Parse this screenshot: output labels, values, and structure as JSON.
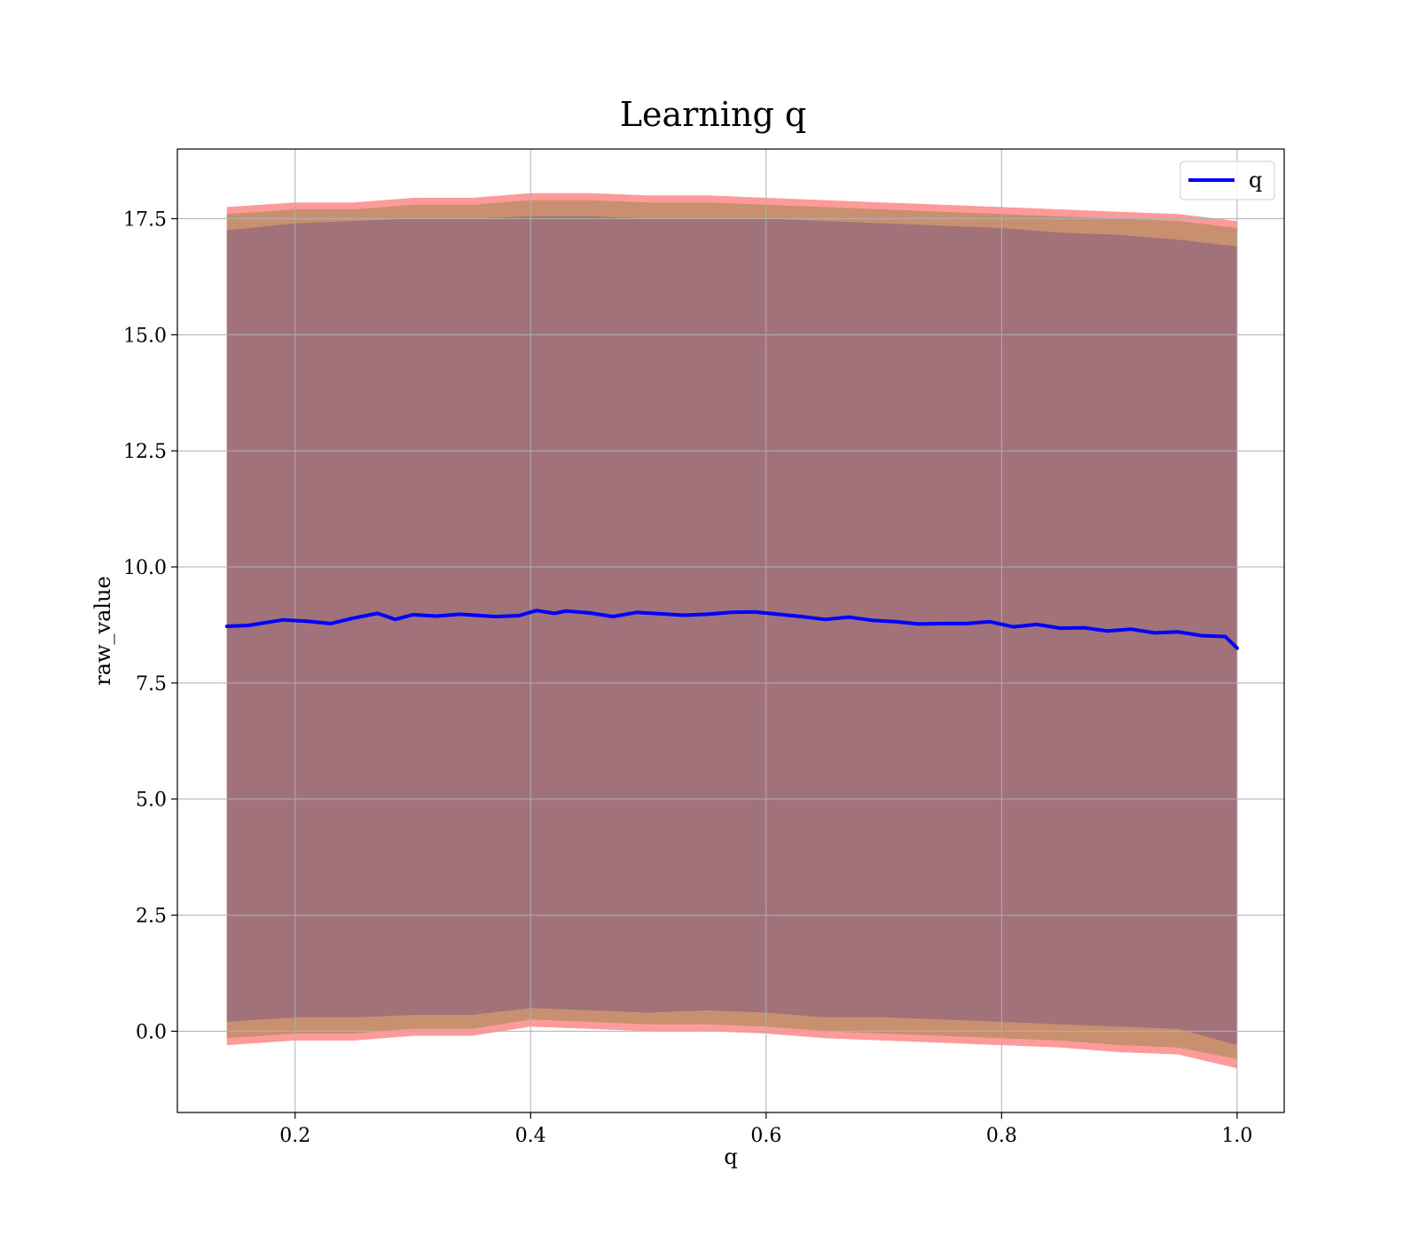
{
  "chart_data": {
    "type": "line",
    "title": "Learning q",
    "xlabel": "q",
    "ylabel": "raw_value",
    "xlim": [
      0.1,
      1.04
    ],
    "ylim": [
      -1.75,
      19.0
    ],
    "grid": true,
    "legend_position": "top-right",
    "xticks": [
      0.2,
      0.4,
      0.6,
      0.8,
      1.0
    ],
    "xtick_labels": [
      "0.2",
      "0.4",
      "0.6",
      "0.8",
      "1.0"
    ],
    "yticks": [
      0.0,
      2.5,
      5.0,
      7.5,
      10.0,
      12.5,
      15.0,
      17.5
    ],
    "ytick_labels": [
      "0.0",
      "2.5",
      "5.0",
      "7.5",
      "10.0",
      "12.5",
      "15.0",
      "17.5"
    ],
    "series": [
      {
        "name": "q",
        "color": "#0000ff",
        "x": [
          0.142,
          0.16,
          0.18,
          0.19,
          0.21,
          0.23,
          0.25,
          0.27,
          0.285,
          0.3,
          0.32,
          0.34,
          0.37,
          0.39,
          0.405,
          0.42,
          0.43,
          0.45,
          0.47,
          0.49,
          0.51,
          0.53,
          0.55,
          0.57,
          0.59,
          0.61,
          0.63,
          0.65,
          0.67,
          0.69,
          0.71,
          0.73,
          0.75,
          0.77,
          0.79,
          0.81,
          0.83,
          0.85,
          0.87,
          0.89,
          0.91,
          0.93,
          0.95,
          0.97,
          0.99,
          1.0
        ],
        "y": [
          8.72,
          8.74,
          8.82,
          8.86,
          8.83,
          8.78,
          8.9,
          9.0,
          8.87,
          8.97,
          8.94,
          8.98,
          8.93,
          8.95,
          9.06,
          9.0,
          9.05,
          9.01,
          8.93,
          9.02,
          8.99,
          8.96,
          8.98,
          9.02,
          9.03,
          8.98,
          8.93,
          8.87,
          8.92,
          8.85,
          8.82,
          8.77,
          8.78,
          8.78,
          8.82,
          8.71,
          8.76,
          8.68,
          8.69,
          8.62,
          8.66,
          8.58,
          8.6,
          8.52,
          8.5,
          8.25
        ]
      }
    ],
    "bands": [
      {
        "color": "#ff9a9a",
        "x": [
          0.142,
          0.2,
          0.25,
          0.3,
          0.35,
          0.4,
          0.45,
          0.5,
          0.55,
          0.6,
          0.65,
          0.7,
          0.75,
          0.8,
          0.85,
          0.9,
          0.95,
          1.0
        ],
        "upper": [
          17.75,
          17.85,
          17.85,
          17.95,
          17.95,
          18.05,
          18.05,
          18.0,
          18.0,
          17.95,
          17.9,
          17.85,
          17.8,
          17.75,
          17.7,
          17.65,
          17.6,
          17.45
        ],
        "lower": [
          -0.3,
          -0.2,
          -0.2,
          -0.1,
          -0.1,
          0.1,
          0.05,
          0.0,
          0.0,
          -0.05,
          -0.15,
          -0.2,
          -0.25,
          -0.3,
          -0.35,
          -0.45,
          -0.5,
          -0.8
        ]
      },
      {
        "color": "#c9906f",
        "x": [
          0.142,
          0.2,
          0.25,
          0.3,
          0.35,
          0.4,
          0.45,
          0.5,
          0.55,
          0.6,
          0.65,
          0.7,
          0.75,
          0.8,
          0.85,
          0.9,
          0.95,
          1.0
        ],
        "upper": [
          17.6,
          17.7,
          17.7,
          17.8,
          17.8,
          17.9,
          17.9,
          17.85,
          17.85,
          17.8,
          17.75,
          17.7,
          17.65,
          17.6,
          17.55,
          17.5,
          17.45,
          17.3
        ],
        "lower": [
          -0.15,
          -0.05,
          -0.05,
          0.05,
          0.05,
          0.25,
          0.2,
          0.15,
          0.15,
          0.1,
          0.0,
          -0.05,
          -0.1,
          -0.15,
          -0.2,
          -0.3,
          -0.35,
          -0.6
        ]
      },
      {
        "color": "#a1727a",
        "x": [
          0.142,
          0.2,
          0.25,
          0.3,
          0.35,
          0.4,
          0.45,
          0.5,
          0.55,
          0.6,
          0.65,
          0.7,
          0.75,
          0.8,
          0.85,
          0.9,
          0.95,
          1.0
        ],
        "upper": [
          17.25,
          17.4,
          17.45,
          17.5,
          17.5,
          17.55,
          17.55,
          17.5,
          17.5,
          17.5,
          17.45,
          17.4,
          17.35,
          17.3,
          17.2,
          17.15,
          17.05,
          16.9
        ],
        "lower": [
          0.2,
          0.3,
          0.3,
          0.35,
          0.35,
          0.5,
          0.45,
          0.4,
          0.45,
          0.4,
          0.3,
          0.3,
          0.25,
          0.2,
          0.15,
          0.1,
          0.05,
          -0.3
        ]
      }
    ]
  }
}
